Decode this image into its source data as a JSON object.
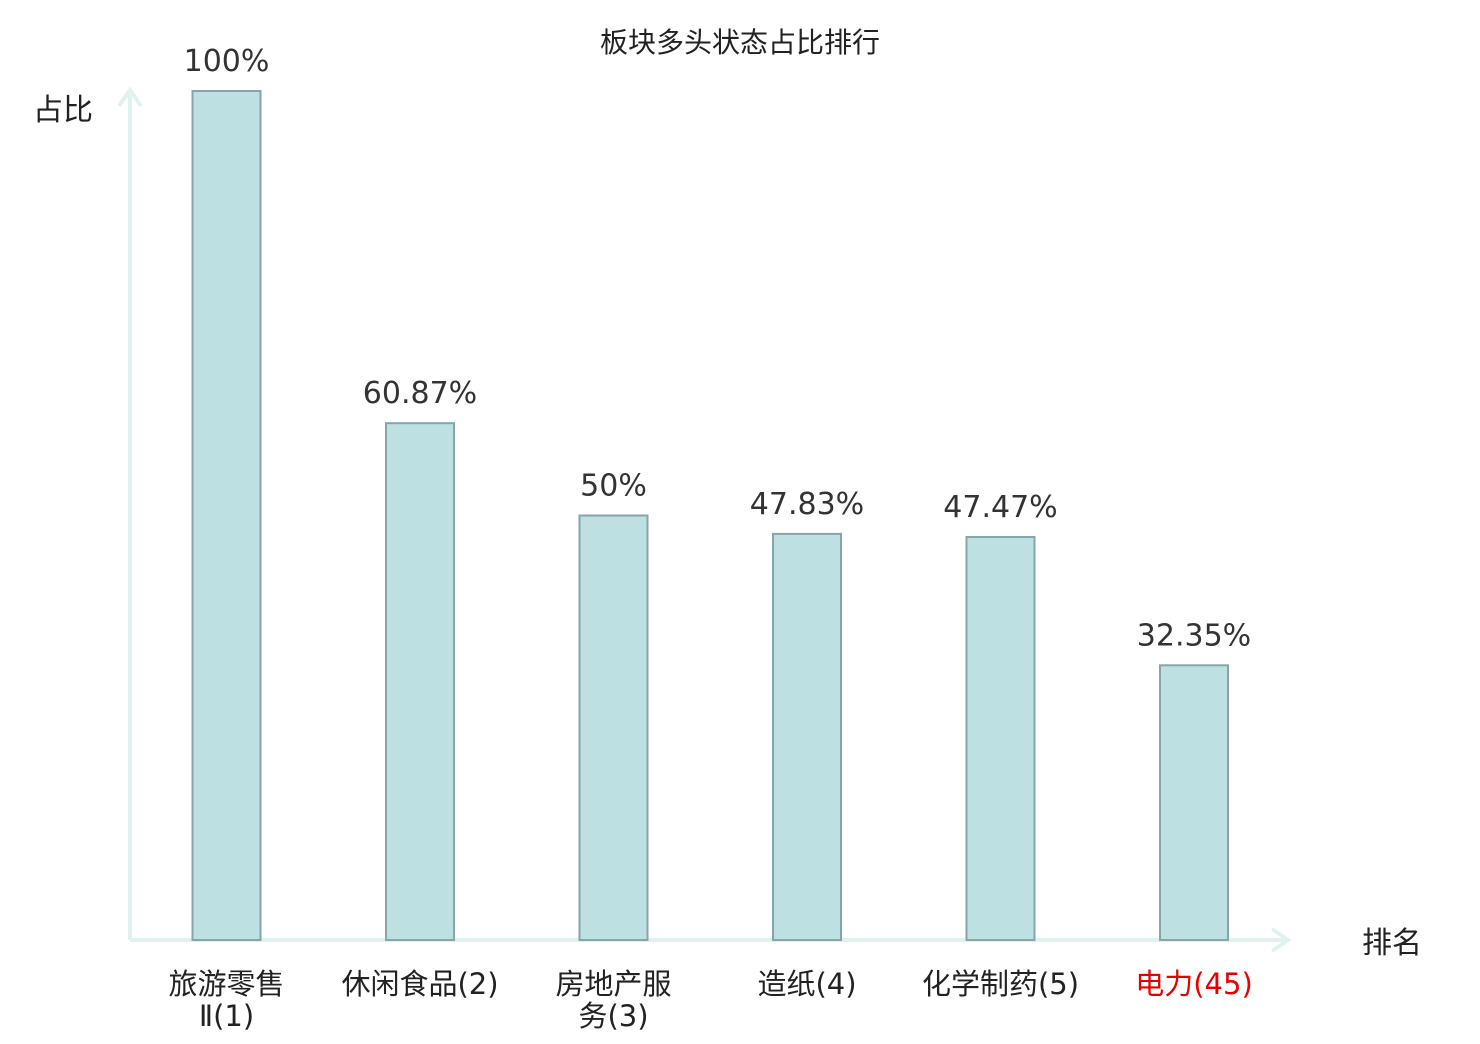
{
  "chart_data": {
    "type": "bar",
    "title": "板块多头状态占比排行",
    "ylabel": "占比",
    "xlabel": "排名",
    "ylim": [
      0,
      100
    ],
    "categories": [
      {
        "lines": [
          "旅游零售",
          "Ⅱ(1)"
        ],
        "highlight": false
      },
      {
        "lines": [
          "休闲食品(2)"
        ],
        "highlight": false
      },
      {
        "lines": [
          "房地产服",
          "务(3)"
        ],
        "highlight": false
      },
      {
        "lines": [
          "造纸(4)"
        ],
        "highlight": false
      },
      {
        "lines": [
          "化学制药(5)"
        ],
        "highlight": false
      },
      {
        "lines": [
          "电力(45)"
        ],
        "highlight": true
      }
    ],
    "values": [
      100,
      60.87,
      50,
      47.83,
      47.47,
      32.35
    ],
    "value_labels": [
      "100%",
      "60.87%",
      "50%",
      "47.83%",
      "47.47%",
      "32.35%"
    ],
    "grid": false,
    "legend": "none",
    "colors": {
      "bar_fill": "#bde0e3",
      "bar_stroke": "#87a5a8",
      "axis": "#e0f2f0",
      "text": "#333333",
      "highlight_text": "#e60000"
    }
  }
}
